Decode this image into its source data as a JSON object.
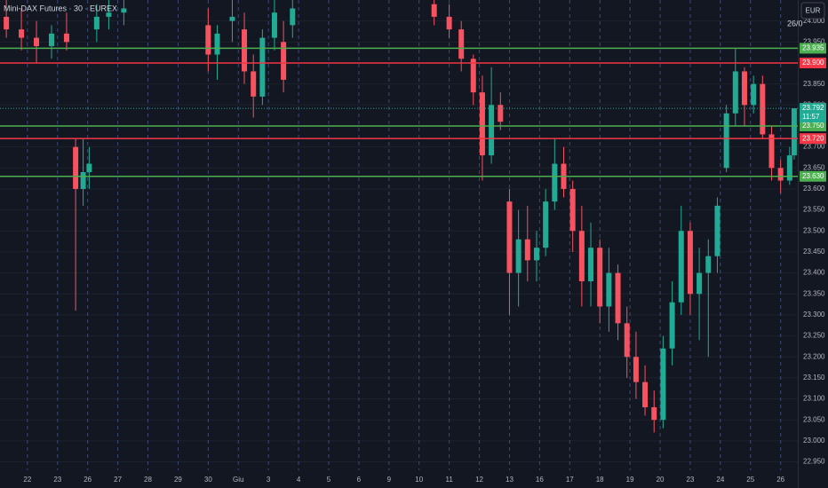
{
  "chart_data": {
    "type": "candlestick",
    "title": "Mini-DAX Futures · 30 · EUREX",
    "currency_button": "EUR",
    "top_date": "26/0",
    "up_color": "#22ab94",
    "down_color": "#f7525f",
    "xlim": [
      -0.91,
      25.57
    ],
    "xticks": [
      {
        "value": 0,
        "label": "22"
      },
      {
        "value": 1,
        "label": "23"
      },
      {
        "value": 2,
        "label": "26"
      },
      {
        "value": 3,
        "label": "27"
      },
      {
        "value": 4,
        "label": "28"
      },
      {
        "value": 5,
        "label": "29"
      },
      {
        "value": 6,
        "label": "30"
      },
      {
        "value": 7,
        "label": "Giu"
      },
      {
        "value": 8,
        "label": "3"
      },
      {
        "value": 9,
        "label": "4"
      },
      {
        "value": 10,
        "label": "5"
      },
      {
        "value": 11,
        "label": "6"
      },
      {
        "value": 12,
        "label": "9"
      },
      {
        "value": 13,
        "label": "10"
      },
      {
        "value": 14,
        "label": "11"
      },
      {
        "value": 15,
        "label": "12"
      },
      {
        "value": 16,
        "label": "13"
      },
      {
        "value": 17,
        "label": "16"
      },
      {
        "value": 18,
        "label": "17"
      },
      {
        "value": 19,
        "label": "18"
      },
      {
        "value": 20,
        "label": "19"
      },
      {
        "value": 21,
        "label": "20"
      },
      {
        "value": 22,
        "label": "23"
      },
      {
        "value": 23,
        "label": "24"
      },
      {
        "value": 24,
        "label": "25"
      },
      {
        "value": 25,
        "label": "26"
      }
    ],
    "ylim": [
      22930,
      24050
    ],
    "yticks": [
      {
        "value": 24000,
        "label": "24.000"
      },
      {
        "value": 23950,
        "label": "23.950"
      },
      {
        "value": 23900,
        "label": "23.900"
      },
      {
        "value": 23850,
        "label": "23.850"
      },
      {
        "value": 23800,
        "label": "23.800"
      },
      {
        "value": 23750,
        "label": "23.750"
      },
      {
        "value": 23700,
        "label": "23.700"
      },
      {
        "value": 23650,
        "label": "23.650"
      },
      {
        "value": 23600,
        "label": "23.600"
      },
      {
        "value": 23550,
        "label": "23.550"
      },
      {
        "value": 23500,
        "label": "23.500"
      },
      {
        "value": 23450,
        "label": "23.450"
      },
      {
        "value": 23400,
        "label": "23.400"
      },
      {
        "value": 23350,
        "label": "23.350"
      },
      {
        "value": 23300,
        "label": "23.300"
      },
      {
        "value": 23250,
        "label": "23.250"
      },
      {
        "value": 23200,
        "label": "23.200"
      },
      {
        "value": 23150,
        "label": "23.150"
      },
      {
        "value": 23100,
        "label": "23.100"
      },
      {
        "value": 23050,
        "label": "23.050"
      },
      {
        "value": 23000,
        "label": "23.000"
      },
      {
        "value": 22950,
        "label": "22.950"
      }
    ],
    "levels": [
      {
        "value": 23935,
        "label": "23.935",
        "color": "#4caf50"
      },
      {
        "value": 23900,
        "label": "23.900",
        "color": "#f23645"
      },
      {
        "value": 23750,
        "label": "23.750",
        "color": "#4caf50"
      },
      {
        "value": 23720,
        "label": "23.720",
        "color": "#f23645"
      },
      {
        "value": 23630,
        "label": "23.630",
        "color": "#4caf50"
      }
    ],
    "last_price": {
      "value": 23792,
      "label": "23.792",
      "countdown": "11:57",
      "color": "#22ab94"
    },
    "candles": [
      {
        "x": -0.7,
        "o": 24010,
        "h": 24050,
        "l": 23960,
        "c": 23980
      },
      {
        "x": -0.2,
        "o": 23980,
        "h": 24030,
        "l": 23930,
        "c": 23960
      },
      {
        "x": 0.3,
        "o": 23960,
        "h": 24000,
        "l": 23900,
        "c": 23940
      },
      {
        "x": 0.8,
        "o": 23940,
        "h": 23990,
        "l": 23910,
        "c": 23970
      },
      {
        "x": 1.3,
        "o": 23970,
        "h": 24020,
        "l": 23930,
        "c": 23950
      },
      {
        "x": 1.6,
        "o": 23700,
        "h": 23720,
        "l": 23310,
        "c": 23600
      },
      {
        "x": 1.85,
        "o": 23600,
        "h": 23720,
        "l": 23560,
        "c": 23640
      },
      {
        "x": 2.05,
        "o": 23640,
        "h": 23700,
        "l": 23600,
        "c": 23660
      },
      {
        "x": 2.3,
        "o": 23980,
        "h": 24040,
        "l": 23950,
        "c": 24010
      },
      {
        "x": 2.7,
        "o": 24010,
        "h": 24050,
        "l": 23980,
        "c": 24020
      },
      {
        "x": 3.2,
        "o": 24020,
        "h": 24050,
        "l": 23990,
        "c": 24030
      },
      {
        "x": 6.0,
        "o": 23990,
        "h": 24030,
        "l": 23880,
        "c": 23920
      },
      {
        "x": 6.3,
        "o": 23920,
        "h": 23990,
        "l": 23860,
        "c": 23970
      },
      {
        "x": 6.8,
        "o": 24000,
        "h": 24050,
        "l": 23950,
        "c": 24010
      },
      {
        "x": 7.2,
        "o": 23980,
        "h": 24020,
        "l": 23850,
        "c": 23880
      },
      {
        "x": 7.5,
        "o": 23880,
        "h": 23920,
        "l": 23770,
        "c": 23820
      },
      {
        "x": 7.8,
        "o": 23820,
        "h": 23980,
        "l": 23800,
        "c": 23960
      },
      {
        "x": 8.2,
        "o": 23960,
        "h": 24050,
        "l": 23930,
        "c": 24020
      },
      {
        "x": 8.5,
        "o": 23950,
        "h": 24000,
        "l": 23830,
        "c": 23860
      },
      {
        "x": 8.8,
        "o": 23990,
        "h": 24050,
        "l": 23960,
        "c": 24030
      },
      {
        "x": 13.5,
        "o": 24040,
        "h": 24050,
        "l": 23990,
        "c": 24010
      },
      {
        "x": 14.0,
        "o": 24010,
        "h": 24040,
        "l": 23960,
        "c": 23980
      },
      {
        "x": 14.4,
        "o": 23980,
        "h": 24000,
        "l": 23880,
        "c": 23910
      },
      {
        "x": 14.8,
        "o": 23910,
        "h": 23920,
        "l": 23800,
        "c": 23830
      },
      {
        "x": 15.1,
        "o": 23830,
        "h": 23870,
        "l": 23620,
        "c": 23680
      },
      {
        "x": 15.4,
        "o": 23680,
        "h": 23890,
        "l": 23660,
        "c": 23800
      },
      {
        "x": 15.7,
        "o": 23800,
        "h": 23830,
        "l": 23740,
        "c": 23760
      },
      {
        "x": 16.0,
        "o": 23570,
        "h": 23600,
        "l": 23300,
        "c": 23400
      },
      {
        "x": 16.3,
        "o": 23400,
        "h": 23550,
        "l": 23320,
        "c": 23480
      },
      {
        "x": 16.6,
        "o": 23480,
        "h": 23560,
        "l": 23380,
        "c": 23430
      },
      {
        "x": 16.9,
        "o": 23430,
        "h": 23500,
        "l": 23380,
        "c": 23460
      },
      {
        "x": 17.2,
        "o": 23460,
        "h": 23600,
        "l": 23440,
        "c": 23570
      },
      {
        "x": 17.5,
        "o": 23570,
        "h": 23720,
        "l": 23550,
        "c": 23660
      },
      {
        "x": 17.8,
        "o": 23660,
        "h": 23700,
        "l": 23580,
        "c": 23600
      },
      {
        "x": 18.1,
        "o": 23600,
        "h": 23620,
        "l": 23450,
        "c": 23500
      },
      {
        "x": 18.4,
        "o": 23500,
        "h": 23560,
        "l": 23320,
        "c": 23380
      },
      {
        "x": 18.7,
        "o": 23380,
        "h": 23520,
        "l": 23320,
        "c": 23460
      },
      {
        "x": 19.0,
        "o": 23460,
        "h": 23480,
        "l": 23280,
        "c": 23320
      },
      {
        "x": 19.3,
        "o": 23320,
        "h": 23460,
        "l": 23260,
        "c": 23400
      },
      {
        "x": 19.6,
        "o": 23400,
        "h": 23420,
        "l": 23240,
        "c": 23280
      },
      {
        "x": 19.9,
        "o": 23280,
        "h": 23320,
        "l": 23150,
        "c": 23200
      },
      {
        "x": 20.2,
        "o": 23200,
        "h": 23260,
        "l": 23100,
        "c": 23140
      },
      {
        "x": 20.5,
        "o": 23140,
        "h": 23180,
        "l": 23060,
        "c": 23080
      },
      {
        "x": 20.8,
        "o": 23080,
        "h": 23120,
        "l": 23020,
        "c": 23050
      },
      {
        "x": 21.1,
        "o": 23050,
        "h": 23250,
        "l": 23030,
        "c": 23220
      },
      {
        "x": 21.4,
        "o": 23220,
        "h": 23380,
        "l": 23180,
        "c": 23330
      },
      {
        "x": 21.7,
        "o": 23330,
        "h": 23560,
        "l": 23300,
        "c": 23500
      },
      {
        "x": 22.0,
        "o": 23500,
        "h": 23520,
        "l": 23300,
        "c": 23350
      },
      {
        "x": 22.3,
        "o": 23350,
        "h": 23460,
        "l": 23240,
        "c": 23400
      },
      {
        "x": 22.6,
        "o": 23400,
        "h": 23480,
        "l": 23200,
        "c": 23440
      },
      {
        "x": 22.9,
        "o": 23440,
        "h": 23580,
        "l": 23400,
        "c": 23560
      },
      {
        "x": 23.2,
        "o": 23650,
        "h": 23800,
        "l": 23640,
        "c": 23780
      },
      {
        "x": 23.5,
        "o": 23780,
        "h": 23935,
        "l": 23750,
        "c": 23880
      },
      {
        "x": 23.8,
        "o": 23880,
        "h": 23890,
        "l": 23750,
        "c": 23800
      },
      {
        "x": 24.1,
        "o": 23800,
        "h": 23870,
        "l": 23780,
        "c": 23850
      },
      {
        "x": 24.4,
        "o": 23850,
        "h": 23870,
        "l": 23720,
        "c": 23730
      },
      {
        "x": 24.7,
        "o": 23730,
        "h": 23750,
        "l": 23620,
        "c": 23650
      },
      {
        "x": 25.0,
        "o": 23650,
        "h": 23670,
        "l": 23590,
        "c": 23620
      },
      {
        "x": 25.3,
        "o": 23620,
        "h": 23700,
        "l": 23610,
        "c": 23680
      },
      {
        "x": 25.45,
        "o": 23680,
        "h": 23792,
        "l": 23670,
        "c": 23792
      }
    ]
  }
}
